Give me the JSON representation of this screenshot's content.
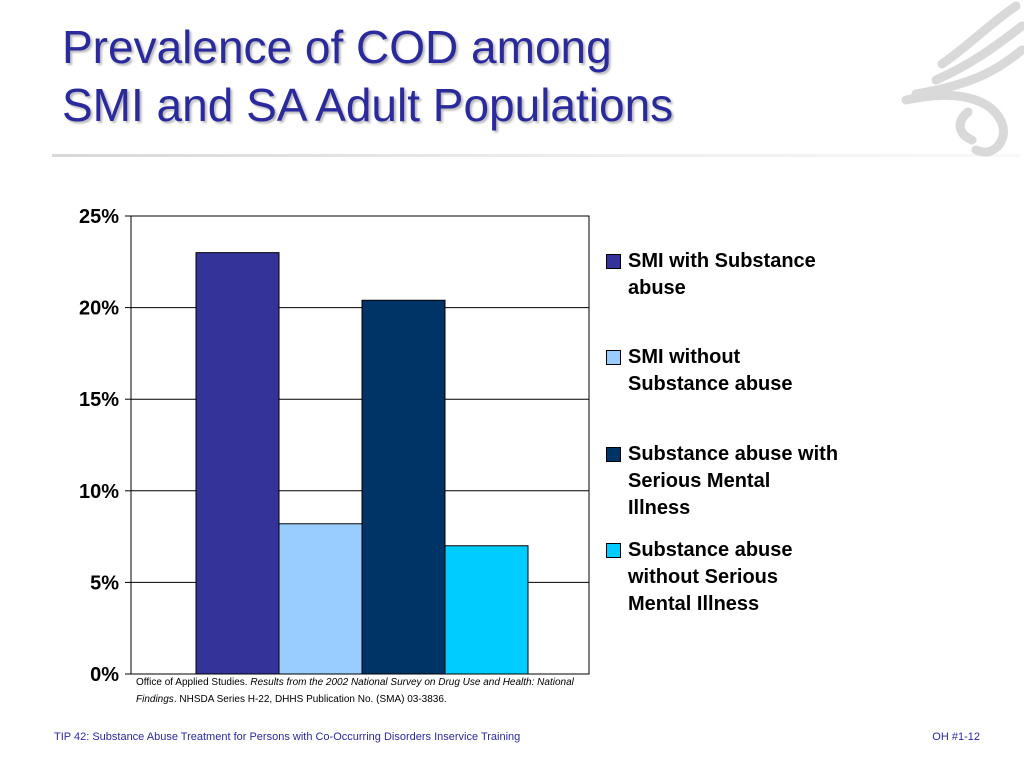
{
  "slide": {
    "title_line1": "Prevalence of COD among",
    "title_line2": "SMI and SA Adult Populations",
    "title_color": "#2a2a9c",
    "source_part1": "Office of Applied Studies. ",
    "source_part2": "Results from the 2002 National Survey on Drug Use and Health: National Findings",
    "source_part3": ". NHSDA Series H-22, DHHS Publication No. (SMA) 03-3836.",
    "footer_left": "TIP 42: Substance Abuse Treatment for Persons with Co-Occurring Disorders Inservice Training",
    "footer_right": "OH #1-12",
    "logo_icon": "hhs-eagle-logo-icon"
  },
  "chart_data": {
    "type": "bar",
    "title": "",
    "xlabel": "",
    "ylabel": "",
    "ylim": [
      0,
      25
    ],
    "y_ticks": [
      0,
      5,
      10,
      15,
      20,
      25
    ],
    "y_tick_labels": [
      "0%",
      "5%",
      "10%",
      "15%",
      "20%",
      "25%"
    ],
    "grid": true,
    "legend_position": "right",
    "series": [
      {
        "name": "SMI with Substance\nabuse",
        "value": 23.0,
        "color": "#333399"
      },
      {
        "name": "SMI without\nSubstance abuse",
        "value": 8.2,
        "color": "#99ccff"
      },
      {
        "name": "Substance abuse with\nSerious Mental\nIllness",
        "value": 20.4,
        "color": "#003366"
      },
      {
        "name": "Substance abuse\nwithout Serious\nMental Illness",
        "value": 7.0,
        "color": "#00ccff"
      }
    ]
  }
}
